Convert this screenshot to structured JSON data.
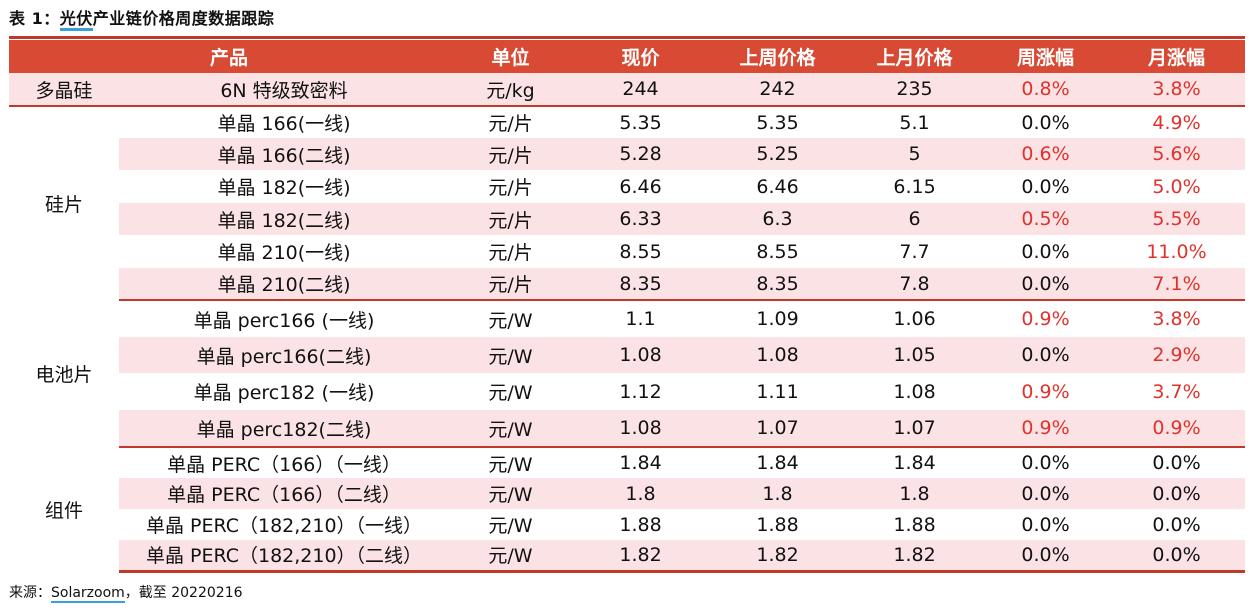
{
  "title": {
    "prefix": "表 1：",
    "highlight": "光伏",
    "rest": "产业链价格周度数据跟踪"
  },
  "headers": [
    "产品",
    "单位",
    "现价",
    "上周价格",
    "上月价格",
    "周涨幅",
    "月涨幅"
  ],
  "groups": [
    {
      "category": "多晶硅",
      "rows": [
        {
          "product": "6N 特级致密料",
          "unit": "元/kg",
          "price": "244",
          "last_week": "242",
          "last_month": "235",
          "wow": "0.8%",
          "mom": "3.8%",
          "wow_up": true,
          "mom_up": true
        }
      ]
    },
    {
      "category": "硅片",
      "rows": [
        {
          "product": "单晶 166(一线)",
          "unit": "元/片",
          "price": "5.35",
          "last_week": "5.35",
          "last_month": "5.1",
          "wow": "0.0%",
          "mom": "4.9%",
          "wow_up": false,
          "mom_up": true
        },
        {
          "product": "单晶 166(二线)",
          "unit": "元/片",
          "price": "5.28",
          "last_week": "5.25",
          "last_month": "5",
          "wow": "0.6%",
          "mom": "5.6%",
          "wow_up": true,
          "mom_up": true
        },
        {
          "product": "单晶 182(一线)",
          "unit": "元/片",
          "price": "6.46",
          "last_week": "6.46",
          "last_month": "6.15",
          "wow": "0.0%",
          "mom": "5.0%",
          "wow_up": false,
          "mom_up": true
        },
        {
          "product": "单晶 182(二线)",
          "unit": "元/片",
          "price": "6.33",
          "last_week": "6.3",
          "last_month": "6",
          "wow": "0.5%",
          "mom": "5.5%",
          "wow_up": true,
          "mom_up": true
        },
        {
          "product": "单晶 210(一线)",
          "unit": "元/片",
          "price": "8.55",
          "last_week": "8.55",
          "last_month": "7.7",
          "wow": "0.0%",
          "mom": "11.0%",
          "wow_up": false,
          "mom_up": true
        },
        {
          "product": "单晶 210(二线)",
          "unit": "元/片",
          "price": "8.35",
          "last_week": "8.35",
          "last_month": "7.8",
          "wow": "0.0%",
          "mom": "7.1%",
          "wow_up": false,
          "mom_up": true
        }
      ]
    },
    {
      "category": "电池片",
      "rows": [
        {
          "product": "单晶 perc166 (一线)",
          "unit": "元/W",
          "price": "1.1",
          "last_week": "1.09",
          "last_month": "1.06",
          "wow": "0.9%",
          "mom": "3.8%",
          "wow_up": true,
          "mom_up": true
        },
        {
          "product": "单晶 perc166(二线)",
          "unit": "元/W",
          "price": "1.08",
          "last_week": "1.08",
          "last_month": "1.05",
          "wow": "0.0%",
          "mom": "2.9%",
          "wow_up": false,
          "mom_up": true
        },
        {
          "product": "单晶 perc182 (一线)",
          "unit": "元/W",
          "price": "1.12",
          "last_week": "1.11",
          "last_month": "1.08",
          "wow": "0.9%",
          "mom": "3.7%",
          "wow_up": true,
          "mom_up": true
        },
        {
          "product": "单晶 perc182(二线)",
          "unit": "元/W",
          "price": "1.08",
          "last_week": "1.07",
          "last_month": "1.07",
          "wow": "0.9%",
          "mom": "0.9%",
          "wow_up": true,
          "mom_up": true
        }
      ]
    },
    {
      "category": "组件",
      "rows": [
        {
          "product": "单晶 PERC（166）（一线）",
          "unit": "元/W",
          "price": "1.84",
          "last_week": "1.84",
          "last_month": "1.84",
          "wow": "0.0%",
          "mom": "0.0%",
          "wow_up": false,
          "mom_up": false
        },
        {
          "product": "单晶 PERC（166）（二线）",
          "unit": "元/W",
          "price": "1.8",
          "last_week": "1.8",
          "last_month": "1.8",
          "wow": "0.0%",
          "mom": "0.0%",
          "wow_up": false,
          "mom_up": false
        },
        {
          "product": "单晶 PERC（182,210）（一线）",
          "unit": "元/W",
          "price": "1.88",
          "last_week": "1.88",
          "last_month": "1.88",
          "wow": "0.0%",
          "mom": "0.0%",
          "wow_up": false,
          "mom_up": false
        },
        {
          "product": "单晶 PERC（182,210）（二线）",
          "unit": "元/W",
          "price": "1.82",
          "last_week": "1.82",
          "last_month": "1.82",
          "wow": "0.0%",
          "mom": "0.0%",
          "wow_up": false,
          "mom_up": false
        }
      ]
    }
  ],
  "source": {
    "prefix": "来源：",
    "name": "Solarzoom",
    "suffix": "，截至 20220216"
  },
  "colors": {
    "header_bg": "#d84a33",
    "stripe": "#fbe3e5",
    "up": "#e0322a",
    "rule": "#c0392b"
  }
}
